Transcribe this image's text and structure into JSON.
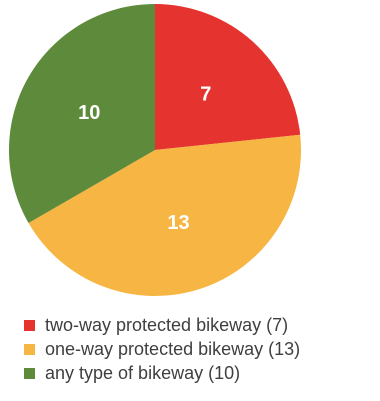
{
  "chart_data": {
    "type": "pie",
    "title": "",
    "slices": [
      {
        "label": "two-way protected bikeway",
        "value": 7,
        "value_label": "7",
        "legend_label": "two-way protected bikeway (7)",
        "color": "#e53430"
      },
      {
        "label": "one-way protected bikeway",
        "value": 13,
        "value_label": "13",
        "legend_label": "one-way protected bikeway (13)",
        "color": "#f7b543"
      },
      {
        "label": "any type of bikeway",
        "value": 10,
        "value_label": "10",
        "legend_label": "any type of bikeway (10)",
        "color": "#5e8b3b"
      }
    ],
    "start": "top, clockwise",
    "legend_position": "bottom-left"
  }
}
